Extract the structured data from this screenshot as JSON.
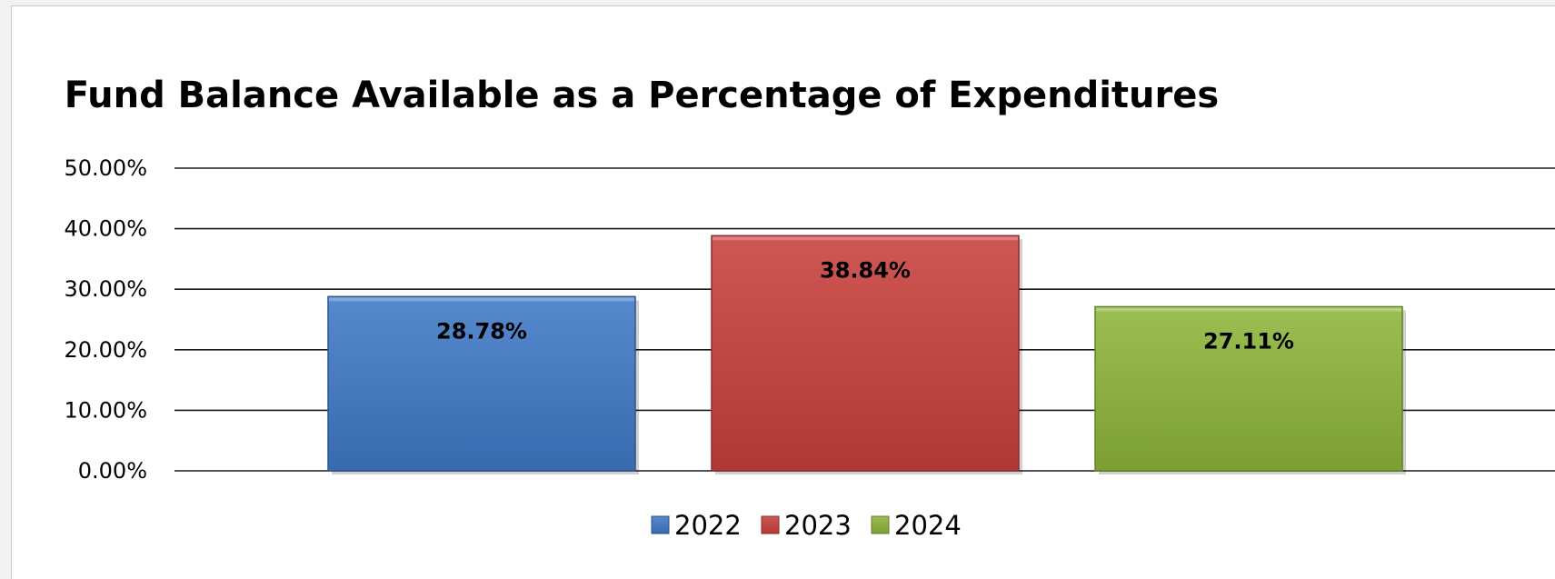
{
  "chart_data": {
    "type": "bar",
    "title": "Fund Balance Available as a Percentage of Expenditures",
    "categories": [
      "2022",
      "2023",
      "2024"
    ],
    "values": [
      28.78,
      38.84,
      27.11
    ],
    "data_labels": [
      "28.78%",
      "38.84%",
      "27.11%"
    ],
    "colors": [
      "#3f79c6",
      "#c9403c",
      "#8db53a"
    ],
    "y_ticks": [
      "0.00%",
      "10.00%",
      "20.00%",
      "30.00%",
      "40.00%",
      "50.00%"
    ],
    "ylim": [
      0,
      50
    ],
    "grid": true,
    "legend": {
      "position": "bottom",
      "entries": [
        "2022",
        "2023",
        "2024"
      ]
    }
  }
}
